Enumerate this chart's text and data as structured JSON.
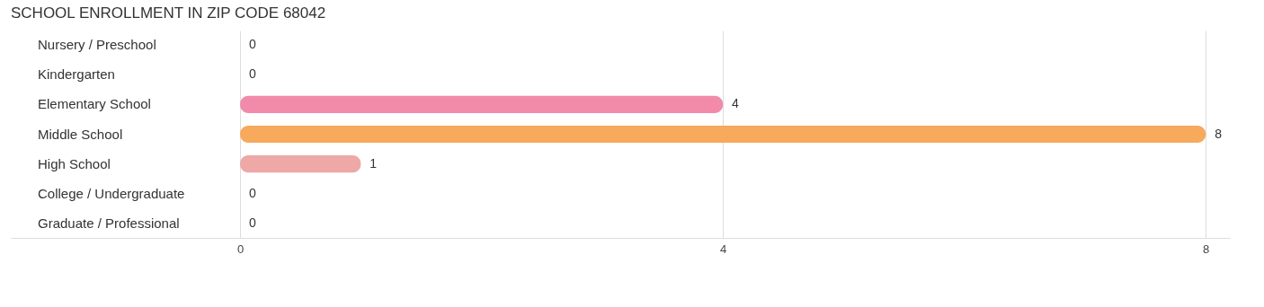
{
  "chart_data": {
    "type": "bar",
    "orientation": "horizontal",
    "title": "SCHOOL ENROLLMENT IN ZIP CODE 68042",
    "categories": [
      "Nursery / Preschool",
      "Kindergarten",
      "Elementary School",
      "Middle School",
      "High School",
      "College / Undergraduate",
      "Graduate / Professional"
    ],
    "values": [
      0,
      0,
      4,
      8,
      1,
      0,
      0
    ],
    "colors": [
      "#80cdd1",
      "#b4bbea",
      "#f28aaa",
      "#f7a95c",
      "#eea8a6",
      "#a9c6ec",
      "#c9a8cc"
    ],
    "xlim": [
      -1.9,
      8.2
    ],
    "xticks": [
      0,
      4,
      8
    ],
    "grid": "x",
    "data_labels": true
  }
}
